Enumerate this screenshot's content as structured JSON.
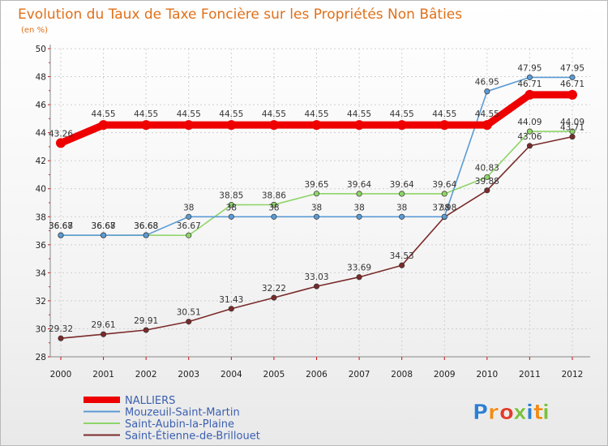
{
  "chart_data": {
    "type": "line",
    "title": "Evolution du Taux de Taxe Foncière sur les Propriétés Non Bâties",
    "subtitle": "(en %)",
    "x": [
      "2000",
      "2001",
      "2002",
      "2003",
      "2004",
      "2005",
      "2006",
      "2007",
      "2008",
      "2009",
      "2010",
      "2011",
      "2012"
    ],
    "ylim": [
      28,
      50
    ],
    "yticks": [
      28,
      30,
      32,
      34,
      36,
      38,
      40,
      42,
      44,
      46,
      48,
      50
    ],
    "grid": true,
    "series": [
      {
        "name": "NALLIERS",
        "color": "#ee0000",
        "values": [
          43.26,
          44.55,
          44.55,
          44.55,
          44.55,
          44.55,
          44.55,
          44.55,
          44.55,
          44.55,
          44.55,
          46.71,
          46.71
        ],
        "labels": [
          "43.26",
          "44.55",
          "44.55",
          "44.55",
          "44.55",
          "44.55",
          "44.55",
          "44.55",
          "44.55",
          "44.55",
          "44.55",
          "46.71",
          "46.71"
        ]
      },
      {
        "name": "Mouzeuil-Saint-Martin",
        "color": "#5b9bd5",
        "values": [
          36.68,
          36.68,
          36.68,
          38,
          38,
          38,
          38,
          38,
          38,
          38,
          46.95,
          47.95,
          47.95
        ],
        "labels": [
          "36.68",
          "36.68",
          "36.68",
          "38",
          "38",
          "38",
          "38",
          "38",
          "38",
          "38",
          "46.95",
          "47.95",
          "47.95"
        ]
      },
      {
        "name": "Saint-Aubin-la-Plaine",
        "color": "#8fd468",
        "values": [
          36.67,
          36.67,
          36.68,
          36.67,
          38.85,
          38.86,
          39.65,
          39.64,
          39.64,
          39.64,
          40.83,
          44.09,
          44.09
        ],
        "labels": [
          "36.67",
          "36.67",
          "36.68",
          "36.67",
          "38.85",
          "38.86",
          "39.65",
          "39.64",
          "39.64",
          "39.64",
          "40.83",
          "44.09",
          "44.09"
        ]
      },
      {
        "name": "Saint-Étienne-de-Brillouet",
        "color": "#7a2a2a",
        "values": [
          29.32,
          29.61,
          29.91,
          30.51,
          31.43,
          32.22,
          33.03,
          33.69,
          34.53,
          37.98,
          39.88,
          43.06,
          43.71
        ],
        "labels": [
          "29.32",
          "29.61",
          "29.91",
          "30.51",
          "31.43",
          "32.22",
          "33.03",
          "33.69",
          "34.53",
          "37.98",
          "39.88",
          "43.06",
          "43.71"
        ]
      }
    ]
  },
  "logo": {
    "letters": [
      "P",
      "r",
      "o",
      "x",
      "i",
      "t",
      "i"
    ],
    "colors": [
      "#2f7fd0",
      "#f08c1a",
      "#e03c2c",
      "#7bc043",
      "#2f7fd0",
      "#f08c1a",
      "#7bc043"
    ]
  }
}
